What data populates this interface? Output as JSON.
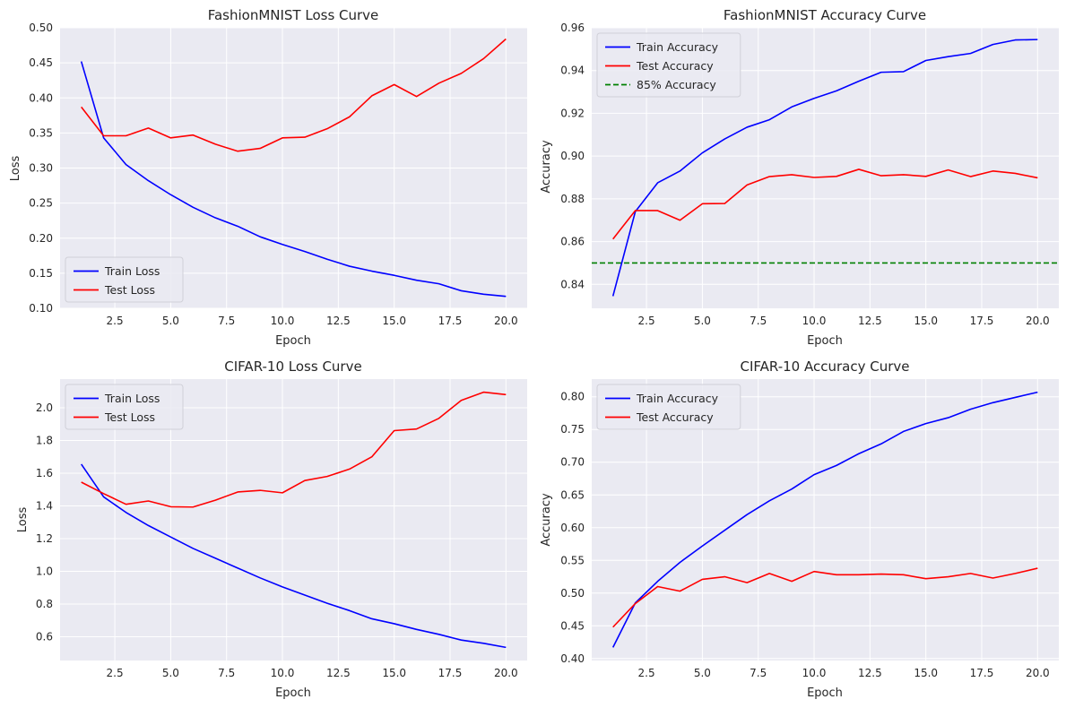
{
  "chart_data": [
    {
      "type": "line",
      "title": "FashionMNIST Loss Curve",
      "xlabel": "Epoch",
      "ylabel": "Loss",
      "x": [
        1,
        2,
        3,
        4,
        5,
        6,
        7,
        8,
        9,
        10,
        11,
        12,
        13,
        14,
        15,
        16,
        17,
        18,
        19,
        20
      ],
      "xlim": [
        0.05,
        20.95
      ],
      "ylim": [
        0.1,
        0.5
      ],
      "xticks": [
        2.5,
        5.0,
        7.5,
        10.0,
        12.5,
        15.0,
        17.5,
        20.0
      ],
      "xtick_labels": [
        "2.5",
        "5.0",
        "7.5",
        "10.0",
        "12.5",
        "15.0",
        "17.5",
        "20.0"
      ],
      "yticks": [
        0.1,
        0.15,
        0.2,
        0.25,
        0.3,
        0.35,
        0.4,
        0.45,
        0.5
      ],
      "ytick_labels": [
        "0.10",
        "0.15",
        "0.20",
        "0.25",
        "0.30",
        "0.35",
        "0.40",
        "0.45",
        "0.50"
      ],
      "grid": true,
      "legend": "lower-left",
      "series": [
        {
          "name": "Train Loss",
          "color": "#0000ff",
          "values": [
            0.452,
            0.343,
            0.305,
            0.282,
            0.262,
            0.244,
            0.229,
            0.217,
            0.202,
            0.191,
            0.181,
            0.17,
            0.16,
            0.153,
            0.147,
            0.14,
            0.135,
            0.125,
            0.12,
            0.117
          ]
        },
        {
          "name": "Test Loss",
          "color": "#ff0000",
          "values": [
            0.387,
            0.346,
            0.346,
            0.357,
            0.343,
            0.347,
            0.334,
            0.324,
            0.328,
            0.343,
            0.344,
            0.356,
            0.373,
            0.403,
            0.419,
            0.402,
            0.421,
            0.435,
            0.456,
            0.484
          ]
        }
      ]
    },
    {
      "type": "line",
      "title": "FashionMNIST Accuracy Curve",
      "xlabel": "Epoch",
      "ylabel": "Accuracy",
      "x": [
        1,
        2,
        3,
        4,
        5,
        6,
        7,
        8,
        9,
        10,
        11,
        12,
        13,
        14,
        15,
        16,
        17,
        18,
        19,
        20
      ],
      "xlim": [
        0.05,
        20.95
      ],
      "ylim": [
        0.8288,
        0.96
      ],
      "xticks": [
        2.5,
        5.0,
        7.5,
        10.0,
        12.5,
        15.0,
        17.5,
        20.0
      ],
      "xtick_labels": [
        "2.5",
        "5.0",
        "7.5",
        "10.0",
        "12.5",
        "15.0",
        "17.5",
        "20.0"
      ],
      "yticks": [
        0.84,
        0.86,
        0.88,
        0.9,
        0.92,
        0.94,
        0.96
      ],
      "ytick_labels": [
        "0.84",
        "0.86",
        "0.88",
        "0.90",
        "0.92",
        "0.94",
        "0.96"
      ],
      "grid": true,
      "legend": "top-left",
      "series": [
        {
          "name": "Train Accuracy",
          "color": "#0000ff",
          "values": [
            0.8345,
            0.874,
            0.8875,
            0.893,
            0.9015,
            0.908,
            0.9135,
            0.917,
            0.923,
            0.927,
            0.9305,
            0.935,
            0.9392,
            0.9395,
            0.9447,
            0.9465,
            0.948,
            0.9522,
            0.9543,
            0.9545
          ]
        },
        {
          "name": "Test Accuracy",
          "color": "#ff0000",
          "values": [
            0.8612,
            0.8745,
            0.8745,
            0.87,
            0.8777,
            0.8778,
            0.8865,
            0.8904,
            0.8913,
            0.89,
            0.8905,
            0.8938,
            0.8908,
            0.8913,
            0.8905,
            0.8935,
            0.8904,
            0.893,
            0.8919,
            0.8898
          ]
        }
      ],
      "hlines": [
        {
          "name": "85% Accuracy",
          "y": 0.85,
          "color": "#008000",
          "style": "dashed"
        }
      ]
    },
    {
      "type": "line",
      "title": "CIFAR-10 Loss Curve",
      "xlabel": "Epoch",
      "ylabel": "Loss",
      "x": [
        1,
        2,
        3,
        4,
        5,
        6,
        7,
        8,
        9,
        10,
        11,
        12,
        13,
        14,
        15,
        16,
        17,
        18,
        19,
        20
      ],
      "xlim": [
        0.05,
        20.95
      ],
      "ylim": [
        0.455,
        2.175
      ],
      "xticks": [
        2.5,
        5.0,
        7.5,
        10.0,
        12.5,
        15.0,
        17.5,
        20.0
      ],
      "xtick_labels": [
        "2.5",
        "5.0",
        "7.5",
        "10.0",
        "12.5",
        "15.0",
        "17.5",
        "20.0"
      ],
      "yticks": [
        0.6,
        0.8,
        1.0,
        1.2,
        1.4,
        1.6,
        1.8,
        2.0
      ],
      "ytick_labels": [
        "0.6",
        "0.8",
        "1.0",
        "1.2",
        "1.4",
        "1.6",
        "1.8",
        "2.0"
      ],
      "grid": true,
      "legend": "top-left",
      "series": [
        {
          "name": "Train Loss",
          "color": "#0000ff",
          "values": [
            1.655,
            1.455,
            1.36,
            1.28,
            1.21,
            1.14,
            1.08,
            1.02,
            0.96,
            0.905,
            0.855,
            0.805,
            0.76,
            0.71,
            0.68,
            0.645,
            0.615,
            0.58,
            0.56,
            0.535
          ]
        },
        {
          "name": "Test Loss",
          "color": "#ff0000",
          "values": [
            1.545,
            1.475,
            1.41,
            1.43,
            1.395,
            1.393,
            1.435,
            1.485,
            1.495,
            1.48,
            1.555,
            1.58,
            1.625,
            1.7,
            1.86,
            1.87,
            1.935,
            2.045,
            2.095,
            2.08
          ]
        }
      ]
    },
    {
      "type": "line",
      "title": "CIFAR-10 Accuracy Curve",
      "xlabel": "Epoch",
      "ylabel": "Accuracy",
      "x": [
        1,
        2,
        3,
        4,
        5,
        6,
        7,
        8,
        9,
        10,
        11,
        12,
        13,
        14,
        15,
        16,
        17,
        18,
        19,
        20
      ],
      "xlim": [
        0.05,
        20.95
      ],
      "ylim": [
        0.397,
        0.827
      ],
      "xticks": [
        2.5,
        5.0,
        7.5,
        10.0,
        12.5,
        15.0,
        17.5,
        20.0
      ],
      "xtick_labels": [
        "2.5",
        "5.0",
        "7.5",
        "10.0",
        "12.5",
        "15.0",
        "17.5",
        "20.0"
      ],
      "yticks": [
        0.4,
        0.45,
        0.5,
        0.55,
        0.6,
        0.65,
        0.7,
        0.75,
        0.8
      ],
      "ytick_labels": [
        "0.40",
        "0.45",
        "0.50",
        "0.55",
        "0.60",
        "0.65",
        "0.70",
        "0.75",
        "0.80"
      ],
      "grid": true,
      "legend": "top-left",
      "series": [
        {
          "name": "Train Accuracy",
          "color": "#0000ff",
          "values": [
            0.417,
            0.485,
            0.518,
            0.547,
            0.572,
            0.596,
            0.62,
            0.641,
            0.659,
            0.681,
            0.695,
            0.713,
            0.728,
            0.747,
            0.759,
            0.768,
            0.781,
            0.791,
            0.799,
            0.807
          ]
        },
        {
          "name": "Test Accuracy",
          "color": "#ff0000",
          "values": [
            0.448,
            0.484,
            0.51,
            0.503,
            0.521,
            0.525,
            0.516,
            0.53,
            0.518,
            0.533,
            0.528,
            0.528,
            0.529,
            0.528,
            0.522,
            0.525,
            0.53,
            0.523,
            0.53,
            0.538
          ]
        }
      ]
    }
  ]
}
